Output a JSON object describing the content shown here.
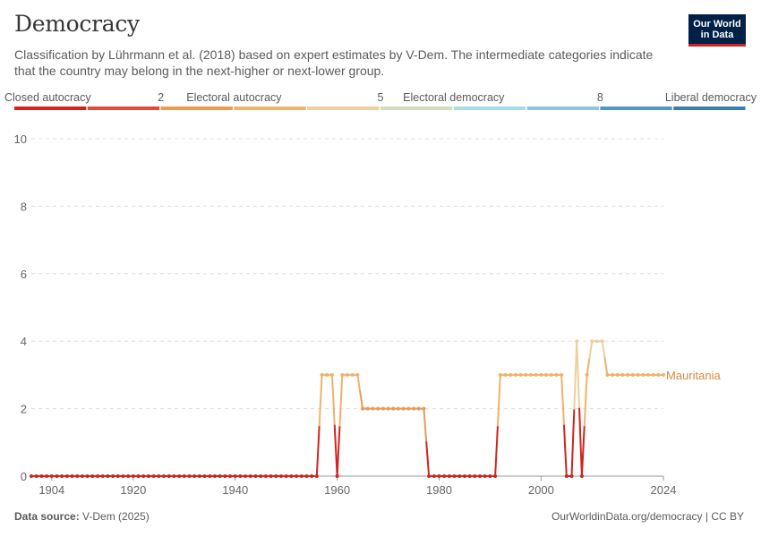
{
  "header": {
    "title": "Democracy",
    "subtitle": "Classification by Lührmann et al. (2018) based on expert estimates by V-Dem. The intermediate categories indicate that the country may belong in the next-higher or next-lower group.",
    "logo_line1": "Our World",
    "logo_line2": "in Data"
  },
  "footer": {
    "source_label": "Data source:",
    "source_value": "V-Dem (2025)",
    "link": "OurWorldinData.org/democracy | CC BY"
  },
  "legend": {
    "labels": [
      "Closed autocracy",
      "2",
      "Electoral autocracy",
      "5",
      "Electoral democracy",
      "8",
      "Liberal democracy"
    ],
    "colors": [
      "#ce261e",
      "#de4c39",
      "#ec9a56",
      "#f0b26c",
      "#ecd0a1",
      "#cfdcbf",
      "#a9dbe5",
      "#8ec5d8",
      "#5496c5",
      "#3e7bae"
    ]
  },
  "chart_data": {
    "type": "line",
    "title": "Democracy",
    "xlabel": "",
    "ylabel": "",
    "ylim": [
      0,
      10
    ],
    "xlim": [
      1900,
      2024
    ],
    "x_ticks": [
      1904,
      1920,
      1940,
      1960,
      1980,
      2000,
      2024
    ],
    "y_ticks": [
      0,
      2,
      4,
      6,
      8,
      10
    ],
    "grid": true,
    "series": [
      {
        "name": "Mauritania",
        "color": "#d9893f",
        "points": [
          [
            1900,
            0
          ],
          [
            1901,
            0
          ],
          [
            1902,
            0
          ],
          [
            1903,
            0
          ],
          [
            1904,
            0
          ],
          [
            1905,
            0
          ],
          [
            1906,
            0
          ],
          [
            1907,
            0
          ],
          [
            1908,
            0
          ],
          [
            1909,
            0
          ],
          [
            1910,
            0
          ],
          [
            1911,
            0
          ],
          [
            1912,
            0
          ],
          [
            1913,
            0
          ],
          [
            1914,
            0
          ],
          [
            1915,
            0
          ],
          [
            1916,
            0
          ],
          [
            1917,
            0
          ],
          [
            1918,
            0
          ],
          [
            1919,
            0
          ],
          [
            1920,
            0
          ],
          [
            1921,
            0
          ],
          [
            1922,
            0
          ],
          [
            1923,
            0
          ],
          [
            1924,
            0
          ],
          [
            1925,
            0
          ],
          [
            1926,
            0
          ],
          [
            1927,
            0
          ],
          [
            1928,
            0
          ],
          [
            1929,
            0
          ],
          [
            1930,
            0
          ],
          [
            1931,
            0
          ],
          [
            1932,
            0
          ],
          [
            1933,
            0
          ],
          [
            1934,
            0
          ],
          [
            1935,
            0
          ],
          [
            1936,
            0
          ],
          [
            1937,
            0
          ],
          [
            1938,
            0
          ],
          [
            1939,
            0
          ],
          [
            1940,
            0
          ],
          [
            1941,
            0
          ],
          [
            1942,
            0
          ],
          [
            1943,
            0
          ],
          [
            1944,
            0
          ],
          [
            1945,
            0
          ],
          [
            1946,
            0
          ],
          [
            1947,
            0
          ],
          [
            1948,
            0
          ],
          [
            1949,
            0
          ],
          [
            1950,
            0
          ],
          [
            1951,
            0
          ],
          [
            1952,
            0
          ],
          [
            1953,
            0
          ],
          [
            1954,
            0
          ],
          [
            1955,
            0
          ],
          [
            1956,
            0
          ],
          [
            1957,
            3
          ],
          [
            1958,
            3
          ],
          [
            1959,
            3
          ],
          [
            1960,
            0
          ],
          [
            1961,
            3
          ],
          [
            1962,
            3
          ],
          [
            1963,
            3
          ],
          [
            1964,
            3
          ],
          [
            1965,
            2
          ],
          [
            1966,
            2
          ],
          [
            1967,
            2
          ],
          [
            1968,
            2
          ],
          [
            1969,
            2
          ],
          [
            1970,
            2
          ],
          [
            1971,
            2
          ],
          [
            1972,
            2
          ],
          [
            1973,
            2
          ],
          [
            1974,
            2
          ],
          [
            1975,
            2
          ],
          [
            1976,
            2
          ],
          [
            1977,
            2
          ],
          [
            1978,
            0
          ],
          [
            1979,
            0
          ],
          [
            1980,
            0
          ],
          [
            1981,
            0
          ],
          [
            1982,
            0
          ],
          [
            1983,
            0
          ],
          [
            1984,
            0
          ],
          [
            1985,
            0
          ],
          [
            1986,
            0
          ],
          [
            1987,
            0
          ],
          [
            1988,
            0
          ],
          [
            1989,
            0
          ],
          [
            1990,
            0
          ],
          [
            1991,
            0
          ],
          [
            1992,
            3
          ],
          [
            1993,
            3
          ],
          [
            1994,
            3
          ],
          [
            1995,
            3
          ],
          [
            1996,
            3
          ],
          [
            1997,
            3
          ],
          [
            1998,
            3
          ],
          [
            1999,
            3
          ],
          [
            2000,
            3
          ],
          [
            2001,
            3
          ],
          [
            2002,
            3
          ],
          [
            2003,
            3
          ],
          [
            2004,
            3
          ],
          [
            2005,
            0
          ],
          [
            2006,
            0
          ],
          [
            2007,
            4
          ],
          [
            2008,
            0
          ],
          [
            2009,
            3
          ],
          [
            2010,
            4
          ],
          [
            2011,
            4
          ],
          [
            2012,
            4
          ],
          [
            2013,
            3
          ],
          [
            2014,
            3
          ],
          [
            2015,
            3
          ],
          [
            2016,
            3
          ],
          [
            2017,
            3
          ],
          [
            2018,
            3
          ],
          [
            2019,
            3
          ],
          [
            2020,
            3
          ],
          [
            2021,
            3
          ],
          [
            2022,
            3
          ],
          [
            2023,
            3
          ],
          [
            2024,
            3
          ]
        ]
      }
    ]
  }
}
